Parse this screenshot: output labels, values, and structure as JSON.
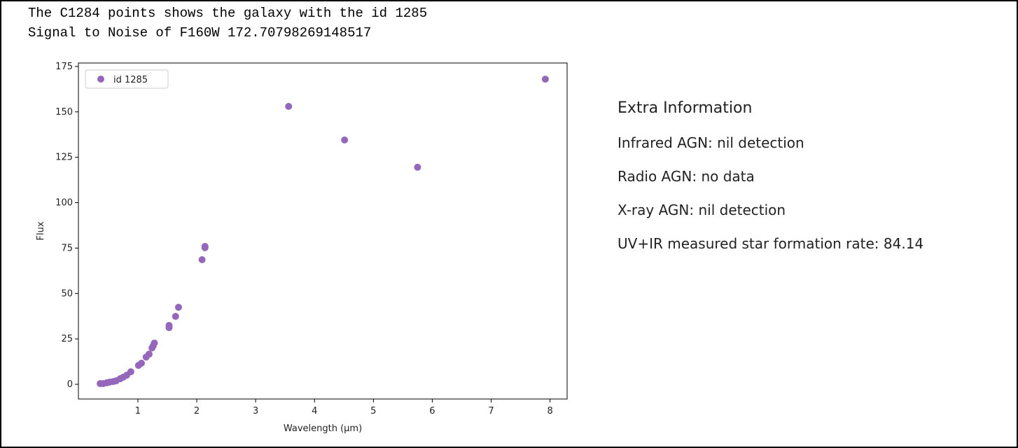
{
  "header": {
    "lines": [
      "The C1284 points shows the galaxy with the id 1285",
      "Signal to Noise of F160W 172.70798269148517"
    ]
  },
  "chart_data": {
    "type": "scatter",
    "xlabel": "Wavelength (μm)",
    "ylabel": "Flux",
    "series": [
      {
        "name": "id 1285",
        "color": "#9467bd",
        "x": [
          0.36,
          0.41,
          0.47,
          0.52,
          0.58,
          0.63,
          0.7,
          0.75,
          0.81,
          0.88,
          1.01,
          1.06,
          1.14,
          1.19,
          1.24,
          1.26,
          1.28,
          1.53,
          1.53,
          1.64,
          1.69,
          2.09,
          2.14,
          2.14,
          3.56,
          4.51,
          5.75,
          7.92
        ],
        "values": [
          0.4,
          0.4,
          0.8,
          1.2,
          1.5,
          1.9,
          3.1,
          3.9,
          5,
          6.9,
          10.4,
          11.6,
          15,
          16.6,
          20,
          21.2,
          22.7,
          32.4,
          31.2,
          37.4,
          42.4,
          68.6,
          75.9,
          75.2,
          153,
          134.5,
          119.5,
          168
        ]
      }
    ],
    "xlim": [
      -0.01,
      8.29
    ],
    "xticks": [
      1,
      2,
      3,
      4,
      5,
      6,
      7,
      8
    ],
    "ylim": [
      -8.1,
      176.9
    ],
    "yticks": [
      0,
      25,
      50,
      75,
      100,
      125,
      150,
      175
    ],
    "legend": "upper left",
    "grid": false
  },
  "info": {
    "title": "Extra Information",
    "items": [
      "Infrared AGN: nil detection",
      "Radio AGN: no data",
      "X-ray AGN: nil detection",
      "UV+IR measured star formation rate: 84.14"
    ]
  }
}
